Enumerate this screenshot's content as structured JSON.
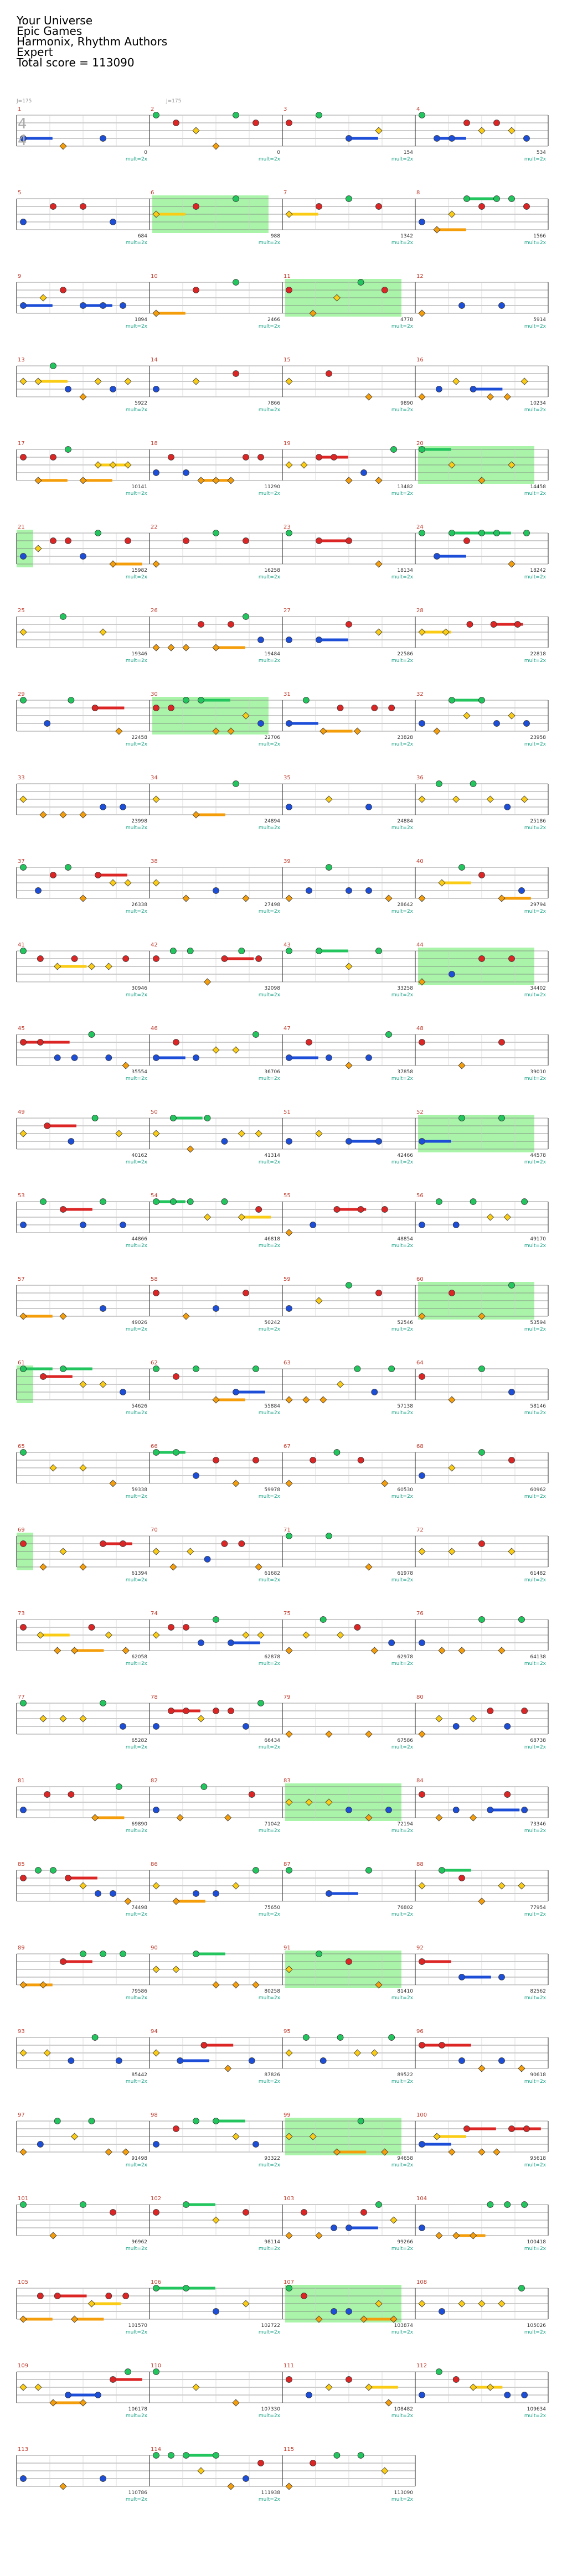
{
  "header": {
    "song": "Your Universe",
    "artist": "Epic Games",
    "charter": "Harmonix, Rhythm Authors",
    "difficulty": "Expert",
    "total_score_label": "Total score = ",
    "total_score": "113090"
  },
  "top_annotations": {
    "bpm_left": "J=175",
    "bpm_right": "J=175",
    "time_signature": "4/4"
  },
  "multiplier_label": "mult=2x",
  "colors": {
    "green": "#22c55e",
    "red": "#dc2626",
    "yellow": "#facc15",
    "blue": "#1d4ed8",
    "orange": "#f59e0b",
    "starpower": "#8ef08e",
    "measure_number": "#c0392b",
    "score_text": "#333333",
    "mult_text": "#16a085"
  },
  "rows": [
    {
      "m1": 1,
      "m2": 2,
      "m3": 3,
      "m4": 4,
      "s": [
        "0",
        "0",
        "154",
        "534"
      ]
    },
    {
      "m1": 5,
      "m2": 6,
      "m3": 7,
      "m4": 8,
      "s": [
        "684",
        "988",
        "1342",
        "1566"
      ]
    },
    {
      "m1": 9,
      "m2": 10,
      "m3": 11,
      "m4": 12,
      "s": [
        "1894",
        "2466",
        "4778",
        "5914"
      ]
    },
    {
      "m1": 13,
      "m2": 14,
      "m3": 15,
      "m4": 16,
      "s": [
        "5922",
        "7866",
        "9890",
        "10234"
      ]
    },
    {
      "m1": 17,
      "m2": 18,
      "m3": 19,
      "m4": 20,
      "s": [
        "10141",
        "11290",
        "13482",
        "14458"
      ]
    },
    {
      "m1": 21,
      "m2": 22,
      "m3": 23,
      "m4": 24,
      "s": [
        "15982",
        "16258",
        "18134",
        "18242"
      ]
    },
    {
      "m1": 25,
      "m2": 26,
      "m3": 27,
      "m4": 28,
      "s": [
        "19346",
        "19484",
        "22586",
        "22818"
      ]
    },
    {
      "m1": 29,
      "m2": 30,
      "m3": 31,
      "m4": 32,
      "s": [
        "22458",
        "22706",
        "23828",
        "23958"
      ]
    },
    {
      "m1": 33,
      "m2": 34,
      "m3": 35,
      "m4": 36,
      "s": [
        "23998",
        "24894",
        "24884",
        "25186"
      ]
    },
    {
      "m1": 37,
      "m2": 38,
      "m3": 39,
      "m4": 40,
      "s": [
        "26338",
        "27498",
        "28642",
        "29794"
      ]
    },
    {
      "m1": 41,
      "m2": 42,
      "m3": 43,
      "m4": 44,
      "s": [
        "30946",
        "32098",
        "33258",
        "34402"
      ]
    },
    {
      "m1": 45,
      "m2": 46,
      "m3": 47,
      "m4": 48,
      "s": [
        "35554",
        "36706",
        "37858",
        "39010"
      ]
    },
    {
      "m1": 49,
      "m2": 50,
      "m3": 51,
      "m4": 52,
      "s": [
        "40162",
        "41314",
        "42466",
        "44578"
      ]
    },
    {
      "m1": 53,
      "m2": 54,
      "m3": 55,
      "m4": 56,
      "s": [
        "44866",
        "46818",
        "48854",
        "49170"
      ]
    },
    {
      "m1": 57,
      "m2": 58,
      "m3": 59,
      "m4": 60,
      "s": [
        "49026",
        "50242",
        "52546",
        "53594"
      ]
    },
    {
      "m1": 61,
      "m2": 62,
      "m3": 63,
      "m4": 64,
      "s": [
        "54626",
        "55884",
        "57138",
        "58146"
      ]
    },
    {
      "m1": 65,
      "m2": 66,
      "m3": 67,
      "m4": 68,
      "s": [
        "59338",
        "59978",
        "60530",
        "60962"
      ]
    },
    {
      "m1": 69,
      "m2": 70,
      "m3": 71,
      "m4": 72,
      "s": [
        "61394",
        "61682",
        "61978",
        "61482"
      ]
    },
    {
      "m1": 73,
      "m2": 74,
      "m3": 75,
      "m4": 76,
      "s": [
        "62058",
        "62878",
        "62978",
        "64138"
      ]
    },
    {
      "m1": 77,
      "m2": 78,
      "m3": 79,
      "m4": 80,
      "s": [
        "65282",
        "66434",
        "67586",
        "68738"
      ]
    },
    {
      "m1": 81,
      "m2": 82,
      "m3": 83,
      "m4": 84,
      "s": [
        "69890",
        "71042",
        "72194",
        "73346"
      ]
    },
    {
      "m1": 85,
      "m2": 86,
      "m3": 87,
      "m4": 88,
      "s": [
        "74498",
        "75650",
        "76802",
        "77954"
      ]
    },
    {
      "m1": 89,
      "m2": 90,
      "m3": 91,
      "m4": 92,
      "s": [
        "79586",
        "80258",
        "81410",
        "82562"
      ]
    },
    {
      "m1": 93,
      "m2": 94,
      "m3": 95,
      "m4": 96,
      "s": [
        "85442",
        "87826",
        "89522",
        "90618"
      ]
    },
    {
      "m1": 97,
      "m2": 98,
      "m3": 99,
      "m4": 100,
      "s": [
        "91498",
        "93322",
        "94658",
        "95618"
      ]
    },
    {
      "m1": 101,
      "m2": 102,
      "m3": 103,
      "m4": 104,
      "s": [
        "96962",
        "98114",
        "99266",
        "100418"
      ]
    },
    {
      "m1": 105,
      "m2": 106,
      "m3": 107,
      "m4": 108,
      "s": [
        "101570",
        "102722",
        "103874",
        "105026"
      ]
    },
    {
      "m1": 109,
      "m2": 110,
      "m3": 111,
      "m4": 112,
      "s": [
        "106178",
        "107330",
        "108482",
        "109634"
      ]
    },
    {
      "m1": 113,
      "m2": 114,
      "m3": 115,
      "s": [
        "110786",
        "111938",
        "113090"
      ]
    }
  ]
}
